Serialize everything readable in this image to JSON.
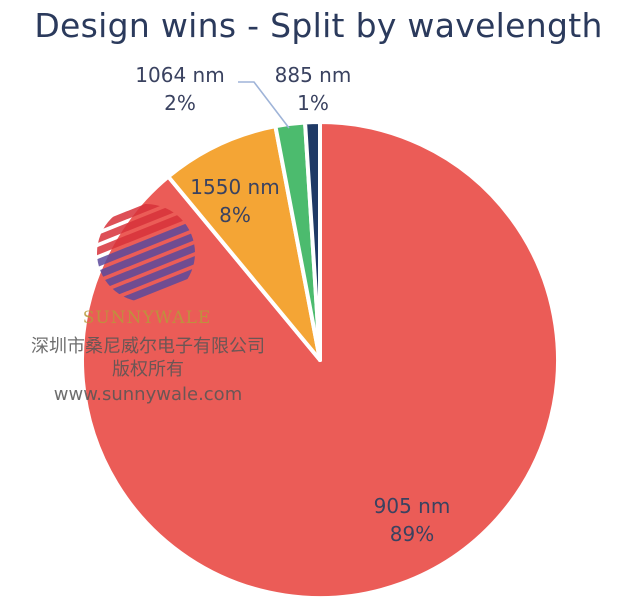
{
  "chart_data": {
    "type": "pie",
    "title": "Design wins - Split by wavelength",
    "slices": [
      {
        "label": "905 nm",
        "value": 89,
        "display": "89%",
        "color": "#eb5c57"
      },
      {
        "label": "1550 nm",
        "value": 8,
        "display": "8%",
        "color": "#f4a535"
      },
      {
        "label": "1064 nm",
        "value": 2,
        "display": "2%",
        "color": "#4cbb6e"
      },
      {
        "label": "885 nm",
        "value": 1,
        "display": "1%",
        "color": "#1f3a66"
      }
    ],
    "legend": "none",
    "label_style": "inside-or-callout"
  },
  "watermark": {
    "brand": "SUNNYWALE",
    "company_cn": "深圳市桑尼威尔电子有限公司",
    "rights_cn": "版权所有",
    "url": "www.sunnywale.com",
    "logo_colors": {
      "top": "#d8323a",
      "bottom": "#5b4a9c"
    }
  }
}
